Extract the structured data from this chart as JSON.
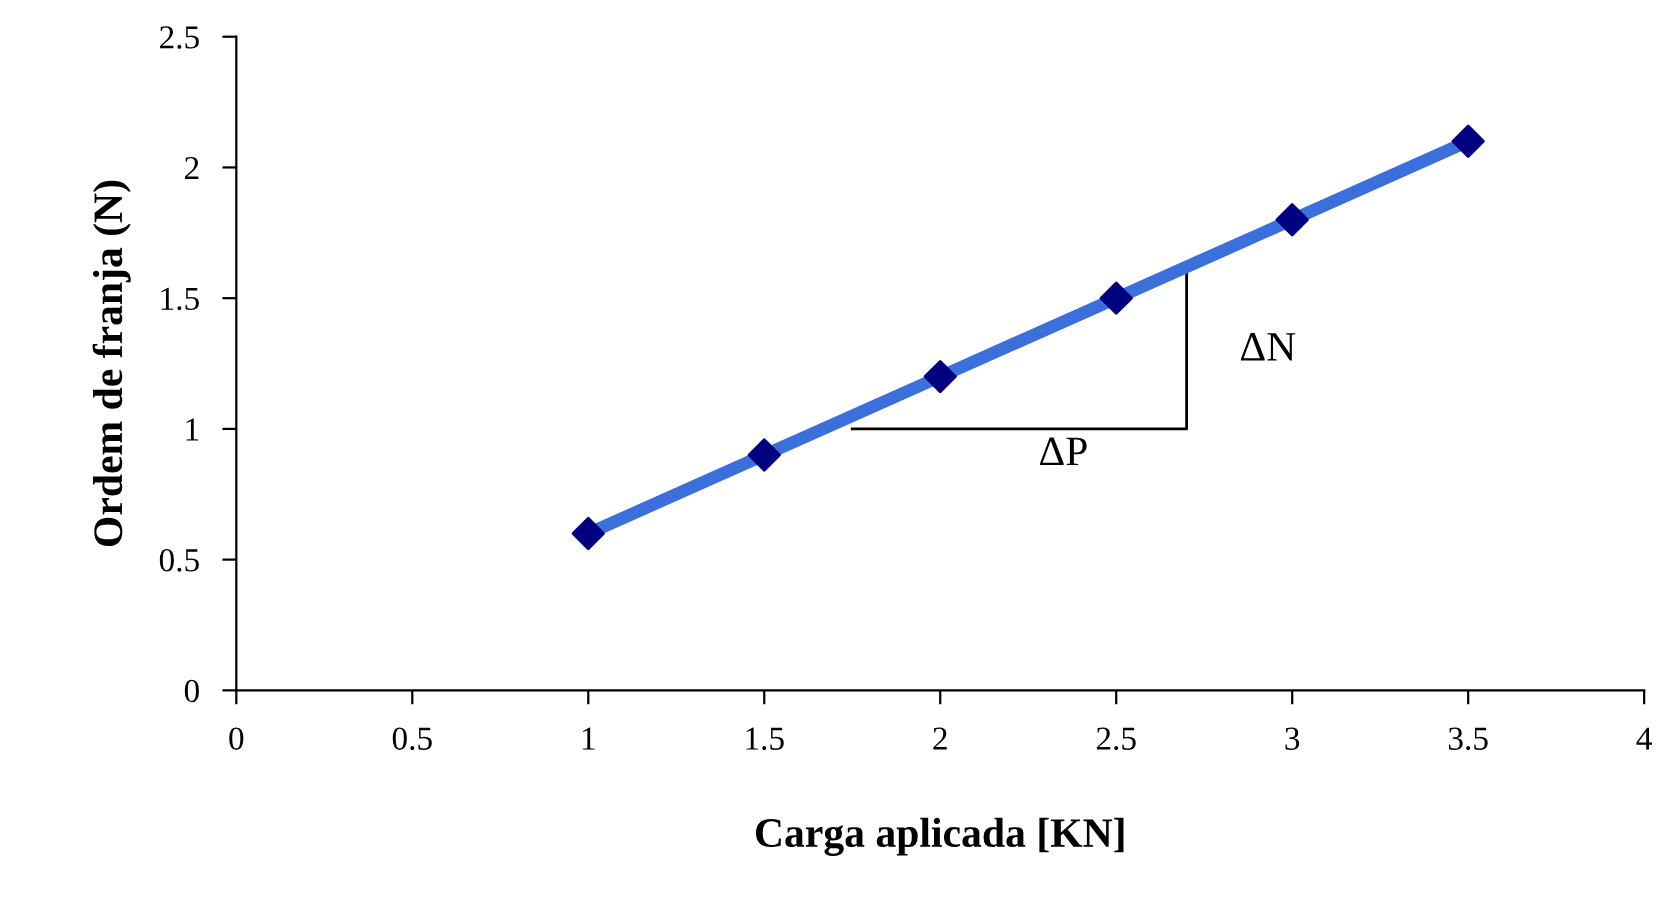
{
  "chart_data": {
    "type": "line",
    "xlabel": "Carga aplicada [KN]",
    "ylabel": "Ordem de franja (N)",
    "x": [
      1,
      1.5,
      2,
      2.5,
      3,
      3.5
    ],
    "series": [
      {
        "color": "#3b6fdc",
        "values": [
          0.6,
          0.9,
          1.2,
          1.5,
          1.8,
          2.1
        ],
        "marker": "none"
      },
      {
        "type": "scatter",
        "color": "#000080",
        "values": [
          0.6,
          0.9,
          1.2,
          1.5,
          1.8,
          2.1
        ],
        "marker": "diamond"
      }
    ],
    "xlim": [
      0,
      4
    ],
    "xticks": [
      0,
      0.5,
      1,
      1.5,
      2,
      2.5,
      3,
      3.5,
      4
    ],
    "ylim": [
      0,
      2.5
    ],
    "yticks": [
      0,
      0.5,
      1,
      1.5,
      2,
      2.5
    ],
    "grid": false,
    "legend": false,
    "annotations": [
      "ΔP",
      "ΔN"
    ]
  }
}
